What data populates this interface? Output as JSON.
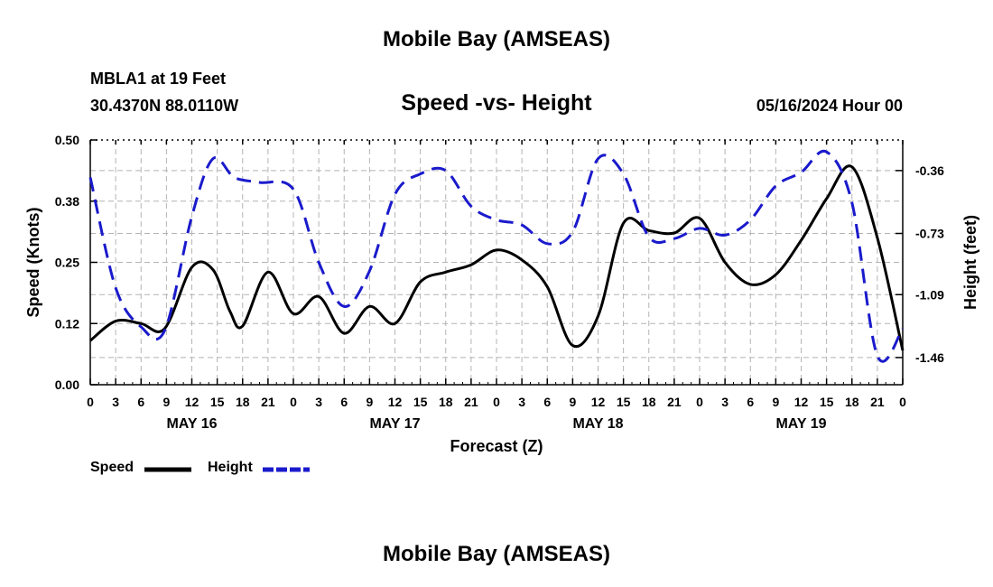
{
  "header": {
    "title": "Mobile Bay (AMSEAS)",
    "station": "MBLA1 at 19 Feet",
    "coords": "30.4370N  88.0110W",
    "run": "05/16/2024 Hour 00"
  },
  "footer": {
    "title": "Mobile Bay (AMSEAS)"
  },
  "colors": {
    "speed": "#000000",
    "height": "#1a1acc",
    "grid": "#b4b4b4"
  },
  "chart_data": {
    "type": "line",
    "title": "Speed -vs- Height",
    "xlabel": "Forecast (Z)",
    "ylabel_left": "Speed (Knots)",
    "ylabel_right": "Height (feet)",
    "x_range_hours": [
      0,
      96
    ],
    "x_tick_step_hours": 3,
    "x_tick_labels": [
      "0",
      "3",
      "6",
      "9",
      "12",
      "15",
      "18",
      "21",
      "0",
      "3",
      "6",
      "9",
      "12",
      "15",
      "18",
      "21",
      "0",
      "3",
      "6",
      "9",
      "12",
      "15",
      "18",
      "21",
      "0",
      "3",
      "6",
      "9",
      "12",
      "15",
      "18",
      "21",
      "0"
    ],
    "day_labels": [
      {
        "label": "MAY 16",
        "hour": 12
      },
      {
        "label": "MAY 17",
        "hour": 36
      },
      {
        "label": "MAY 18",
        "hour": 60
      },
      {
        "label": "MAY 19",
        "hour": 84
      }
    ],
    "left_axis": {
      "range": [
        0,
        0.5
      ],
      "ticks": [
        0,
        0.125,
        0.25,
        0.375,
        0.5
      ],
      "tick_labels": [
        "0.00",
        "0.12",
        "0.25",
        "0.38",
        "0.50"
      ]
    },
    "right_axis": {
      "range": [
        -1.62,
        -0.18
      ],
      "ticks": [
        -1.46,
        -1.09,
        -0.73,
        -0.36
      ],
      "tick_labels": [
        "-1.46",
        "-1.09",
        "-0.73",
        "-0.36"
      ]
    },
    "grid": true,
    "legend": [
      {
        "name": "Speed"
      },
      {
        "name": "Height"
      }
    ],
    "series": [
      {
        "name": "Speed",
        "axis": "left",
        "style": "solid",
        "hours": [
          0,
          3,
          6,
          8.8,
          12,
          14.5,
          16.5,
          18,
          21,
          24,
          27,
          30,
          33,
          36,
          39,
          42,
          45,
          48,
          51,
          54,
          57,
          60,
          63,
          66,
          69,
          72,
          75,
          78,
          81,
          84,
          87,
          90,
          93,
          96
        ],
        "values": [
          0.09,
          0.13,
          0.125,
          0.115,
          0.24,
          0.235,
          0.15,
          0.12,
          0.23,
          0.145,
          0.18,
          0.105,
          0.16,
          0.125,
          0.21,
          0.23,
          0.245,
          0.275,
          0.255,
          0.2,
          0.08,
          0.14,
          0.33,
          0.315,
          0.31,
          0.34,
          0.25,
          0.205,
          0.225,
          0.295,
          0.38,
          0.445,
          0.3,
          0.07
        ]
      },
      {
        "name": "Height",
        "axis": "right",
        "style": "dashed",
        "hours": [
          0,
          3,
          6,
          8.8,
          12,
          14.5,
          17,
          20,
          24,
          27,
          30,
          33,
          36,
          39,
          42,
          45,
          48,
          51,
          54,
          57,
          60,
          63,
          66,
          69,
          72,
          75,
          78,
          81,
          84,
          87,
          90,
          93,
          96
        ],
        "values": [
          -0.4,
          -1.05,
          -1.28,
          -1.3,
          -0.63,
          -0.29,
          -0.4,
          -0.43,
          -0.47,
          -0.9,
          -1.16,
          -0.95,
          -0.5,
          -0.38,
          -0.36,
          -0.57,
          -0.65,
          -0.68,
          -0.79,
          -0.72,
          -0.29,
          -0.38,
          -0.75,
          -0.76,
          -0.7,
          -0.74,
          -0.65,
          -0.45,
          -0.37,
          -0.25,
          -0.55,
          -1.45,
          -1.29
        ]
      }
    ]
  }
}
